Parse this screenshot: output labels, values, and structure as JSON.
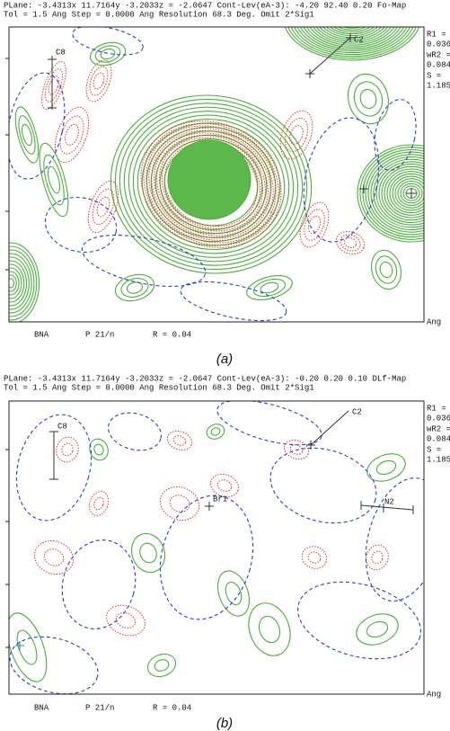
{
  "panels": [
    {
      "header": {
        "line1": "PLane: -3.4313x 11.7164y -3.2033z = -2.0647   Cont-Lev(eA-3): -4.20 92.40  0.20  Fo-Map",
        "line2": "Tol =  1.5 Ang              Step =  0.0000 Ang  Resolution 68.3 Deg.  Omit 2*Sig1"
      },
      "stats": [
        "R1 =",
        "0.036",
        "wR2 =",
        "0.084",
        "S =",
        "1.185"
      ],
      "atoms": [
        "C8",
        "C2"
      ],
      "footer": {
        "name": "BNA",
        "space_group": "P 21/n",
        "r": "R = 0.04",
        "unit": "Ang"
      },
      "caption": "(a)"
    },
    {
      "header": {
        "line1": "PLane: -3.4313x 11.7164y -3.2033z = -2.0647   Cont-Lev(eA-3): -0.20  0.20  0.10  DLf-Map",
        "line2": "Tol =  1.5 Ang              Step =  0.0000 Ang  Resolution 68.3 Deg.  Omit 2*Sig1"
      },
      "stats": [
        "R1 =",
        "0.036",
        "wR2 =",
        "0.084",
        "S =",
        "1.185"
      ],
      "atoms": [
        "C8",
        "C2",
        "Br1",
        "N2"
      ],
      "footer": {
        "name": "BNA",
        "space_group": "P 21/n",
        "r": "R = 0.04",
        "unit": "Ang"
      },
      "caption": "(b)"
    }
  ]
}
